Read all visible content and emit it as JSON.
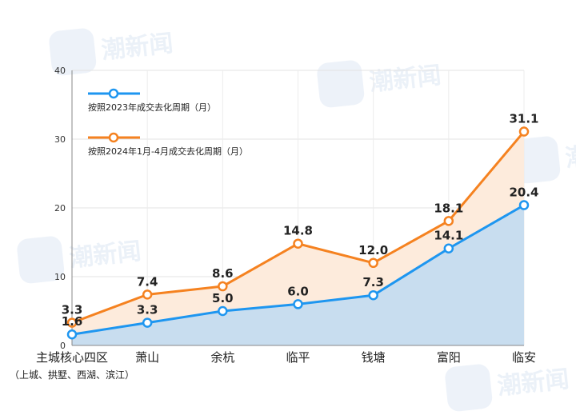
{
  "chart_data": {
    "type": "area",
    "categories": [
      "主城核心四区",
      "萧山",
      "余杭",
      "临平",
      "钱塘",
      "富阳",
      "临安"
    ],
    "category_sub": "（上城、拱墅、西湖、滨江）",
    "series": [
      {
        "name": "按照2023年成交去化周期（月）",
        "values": [
          1.6,
          3.3,
          5.0,
          6.0,
          7.3,
          14.1,
          20.4
        ],
        "labels": [
          "1.6",
          "3.3",
          "5.0",
          "6.0",
          "7.3",
          "14.1",
          "20.4"
        ],
        "color": "#1e96f0",
        "fill": "#c8ddef"
      },
      {
        "name": "按照2024年1月-4月成交去化周期（月）",
        "values": [
          3.3,
          7.4,
          8.6,
          14.8,
          12.0,
          18.1,
          31.1
        ],
        "labels": [
          "3.3",
          "7.4",
          "8.6",
          "14.8",
          "12.0",
          "18.1",
          "31.1"
        ],
        "color": "#f58220",
        "fill": "#fdebdc"
      }
    ],
    "ylim": [
      0,
      40
    ],
    "yticks": [
      "0",
      "10",
      "20",
      "30",
      "40"
    ],
    "grid": true,
    "legend_position": "top-left"
  },
  "watermark": {
    "text": "潮新闻",
    "color": "#dbe6f3"
  }
}
